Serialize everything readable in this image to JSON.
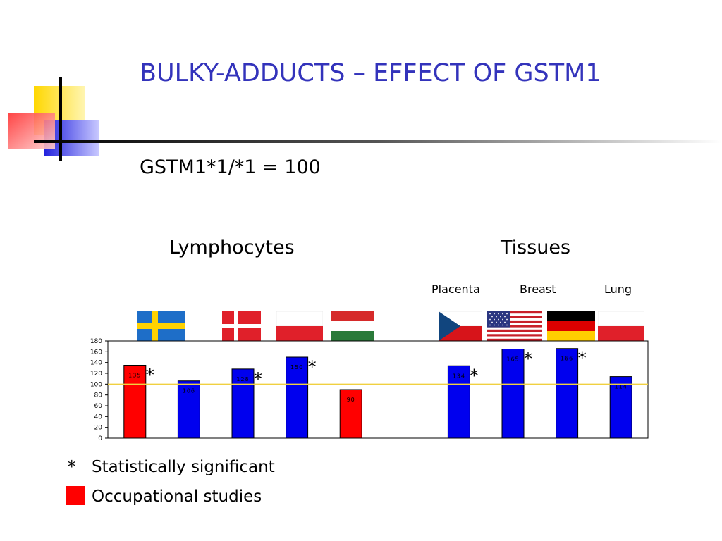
{
  "slide": {
    "title": "BULKY-ADDUCTS – EFFECT OF GSTM1",
    "subtitle": "GSTM1*1/*1 = 100",
    "group_lymphocytes": "Lymphocytes",
    "group_tissues": "Tissues",
    "tissue_labels": [
      "Placenta",
      "Breast",
      "Lung"
    ]
  },
  "flags": [
    "sweden-flag",
    "denmark-flag",
    "poland-flag",
    "hungary-flag",
    "czech-flag",
    "usa-flag",
    "germany-flag",
    "poland-flag"
  ],
  "legend": {
    "star_symbol": "*",
    "star_text": "Statistically significant",
    "occupational_text": "Occupational studies",
    "occupational_color": "#ff0000"
  },
  "chart_data": {
    "type": "bar",
    "values": [
      135,
      106,
      128,
      150,
      90,
      null,
      134,
      165,
      166,
      114
    ],
    "data_labels": [
      "135",
      "106",
      "128",
      "150",
      "90",
      "",
      "134",
      "165",
      "166",
      "114"
    ],
    "colors": [
      "#ff0000",
      "#0000ee",
      "#0000ee",
      "#0000ee",
      "#ff0000",
      null,
      "#0000ee",
      "#0000ee",
      "#0000ee",
      "#0000ee"
    ],
    "significant": [
      true,
      false,
      true,
      true,
      false,
      false,
      true,
      true,
      true,
      false
    ],
    "ylim": [
      0,
      180
    ],
    "yticks": [
      "0",
      "20",
      "40",
      "60",
      "80",
      "100",
      "120",
      "140",
      "160",
      "180"
    ],
    "reference_line": 100,
    "reference_color": "#f0d040",
    "grid": false
  }
}
